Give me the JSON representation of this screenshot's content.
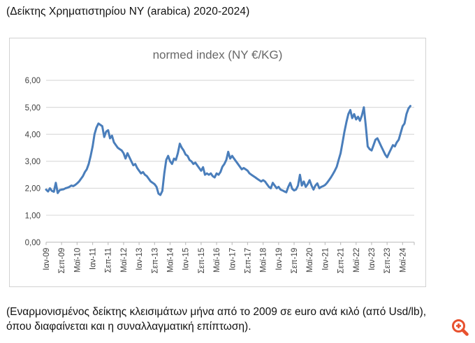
{
  "header": {
    "title": "(Δείκτης Χρηματιστηρίου NY (arabica) 2020-2024)"
  },
  "footer": {
    "caption": "(Εναρμονισμένος δείκτης κλεισιμάτων μήνα από το 2009 σε euro ανά κιλό (από Usd/lb), όπου διαφαίνεται και η συναλλαγματική επίπτωση)."
  },
  "icons": {
    "zoom_icon_name": "magnifier-plus-icon"
  },
  "colors": {
    "line": "#4a7ebb",
    "grid": "#dcdcdc",
    "axis": "#c0c0c0",
    "tick_label": "#3f3f3f",
    "chart_title": "#686868",
    "box_border": "#d2d2d2",
    "zoom_icon": "#e8512e"
  },
  "chart_data": {
    "type": "line",
    "title": "normed index (NY €/KG)",
    "xlabel": "",
    "ylabel": "",
    "x_start": "Ιαν-09",
    "x_end": "Σεπ-24",
    "x_frequency": "monthly",
    "grid": "horizontal",
    "legend": "none",
    "ylim": [
      0,
      6
    ],
    "xlim_months": [
      0,
      190
    ],
    "y_tick_labels": [
      "0,00",
      "1,00",
      "2,00",
      "3,00",
      "4,00",
      "5,00",
      "6,00"
    ],
    "y_tick_values": [
      0,
      1,
      2,
      3,
      4,
      5,
      6
    ],
    "x_tick_labels": [
      "Ιαν-09",
      "Σεπ-09",
      "Μαϊ-10",
      "Ιαν-11",
      "Σεπ-11",
      "Μαϊ-12",
      "Ιαν-13",
      "Σεπ-13",
      "Μαϊ-14",
      "Ιαν-15",
      "Σεπ-15",
      "Μαϊ-16",
      "Ιαν-17",
      "Σεπ-17",
      "Μαϊ-18",
      "Ιαν-19",
      "Σεπ-19",
      "Μαϊ-20",
      "Ιαν-21",
      "Σεπ-21",
      "Μαϊ-22",
      "Ιαν-23",
      "Σεπ-23",
      "Μαϊ-24"
    ],
    "x_tick_month_indices": [
      0,
      8,
      16,
      24,
      32,
      40,
      48,
      56,
      64,
      72,
      80,
      88,
      96,
      104,
      112,
      120,
      128,
      136,
      144,
      152,
      160,
      168,
      176,
      184
    ],
    "series": [
      {
        "name": "normed index (NY €/KG)",
        "values": [
          1.95,
          1.88,
          2.0,
          1.9,
          1.87,
          2.2,
          1.82,
          1.93,
          1.95,
          1.96,
          2.0,
          2.02,
          2.05,
          2.1,
          2.08,
          2.12,
          2.18,
          2.25,
          2.35,
          2.45,
          2.6,
          2.7,
          2.9,
          3.2,
          3.55,
          4.0,
          4.25,
          4.4,
          4.35,
          4.3,
          3.9,
          4.1,
          4.15,
          3.85,
          3.95,
          3.7,
          3.6,
          3.5,
          3.45,
          3.4,
          3.3,
          3.1,
          3.3,
          3.15,
          3.0,
          2.85,
          2.9,
          2.75,
          2.65,
          2.55,
          2.6,
          2.5,
          2.45,
          2.35,
          2.25,
          2.2,
          2.15,
          2.05,
          1.8,
          1.75,
          1.9,
          2.55,
          3.05,
          3.2,
          3.0,
          2.9,
          3.1,
          3.05,
          3.3,
          3.65,
          3.5,
          3.4,
          3.25,
          3.2,
          3.05,
          3.0,
          2.9,
          2.95,
          2.85,
          2.75,
          2.65,
          2.78,
          2.5,
          2.55,
          2.5,
          2.55,
          2.45,
          2.4,
          2.55,
          2.5,
          2.6,
          2.8,
          2.9,
          3.05,
          3.35,
          3.1,
          3.2,
          3.1,
          3.0,
          2.9,
          2.8,
          2.7,
          2.75,
          2.7,
          2.65,
          2.55,
          2.5,
          2.45,
          2.4,
          2.35,
          2.3,
          2.25,
          2.3,
          2.25,
          2.15,
          2.05,
          2.0,
          2.2,
          2.1,
          2.0,
          2.05,
          1.95,
          1.92,
          1.88,
          1.85,
          2.05,
          2.2,
          1.98,
          1.92,
          1.95,
          2.1,
          2.5,
          2.1,
          2.25,
          2.05,
          2.15,
          2.3,
          2.1,
          1.95,
          2.1,
          2.18,
          2.0,
          2.05,
          2.08,
          2.12,
          2.2,
          2.3,
          2.4,
          2.52,
          2.65,
          2.8,
          3.05,
          3.3,
          3.7,
          4.1,
          4.45,
          4.75,
          4.9,
          4.6,
          4.75,
          4.55,
          4.65,
          4.5,
          4.7,
          5.0,
          4.3,
          3.55,
          3.45,
          3.4,
          3.6,
          3.8,
          3.85,
          3.7,
          3.55,
          3.4,
          3.25,
          3.15,
          3.3,
          3.45,
          3.6,
          3.55,
          3.7,
          3.8,
          4.05,
          4.3,
          4.4,
          4.75,
          4.95,
          5.05
        ]
      }
    ]
  }
}
